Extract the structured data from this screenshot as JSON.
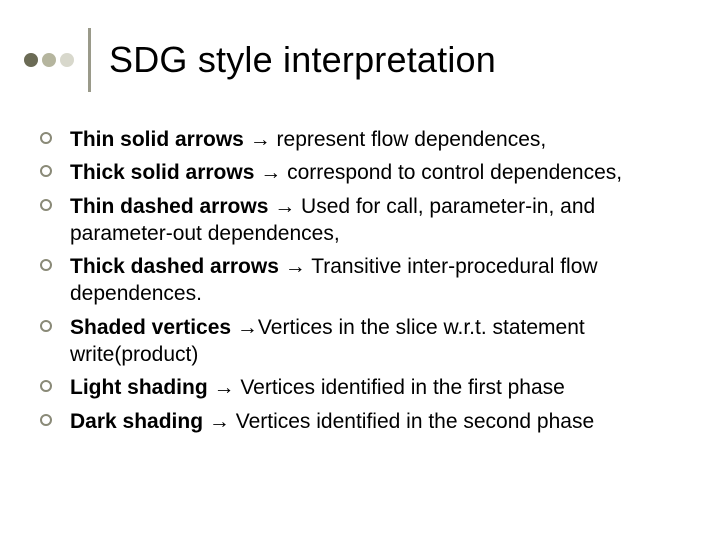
{
  "title": "SDG style interpretation",
  "dot_colors": [
    "#6b6b55",
    "#b5b59e",
    "#d8d8cc"
  ],
  "vr_color": "#9a9a8a",
  "bullet_border_color": "#8a8a78",
  "title_fontsize": 36,
  "body_fontsize": 21,
  "items": [
    {
      "bold": "Thin solid arrows",
      "arrow": " → ",
      "rest": "represent flow dependences,"
    },
    {
      "bold": "Thick solid arrows",
      "arrow": " → ",
      "rest": "correspond to control dependences,"
    },
    {
      "bold": "Thin dashed arrows",
      "arrow": " → ",
      "rest": "Used for call, parameter-in, and parameter-out dependences,"
    },
    {
      "bold": "Thick dashed arrows",
      "arrow": " → ",
      "rest": "Transitive inter-procedural flow dependences."
    },
    {
      "bold": "Shaded vertices ",
      "arrow": "→",
      "rest": "Vertices in the slice w.r.t. statement write(product)"
    },
    {
      "bold": "Light shading",
      "arrow": " → ",
      "rest": "Vertices identified in the first phase"
    },
    {
      "bold": "Dark shading",
      "arrow": " → ",
      "rest": "Vertices identified in the second phase"
    }
  ]
}
